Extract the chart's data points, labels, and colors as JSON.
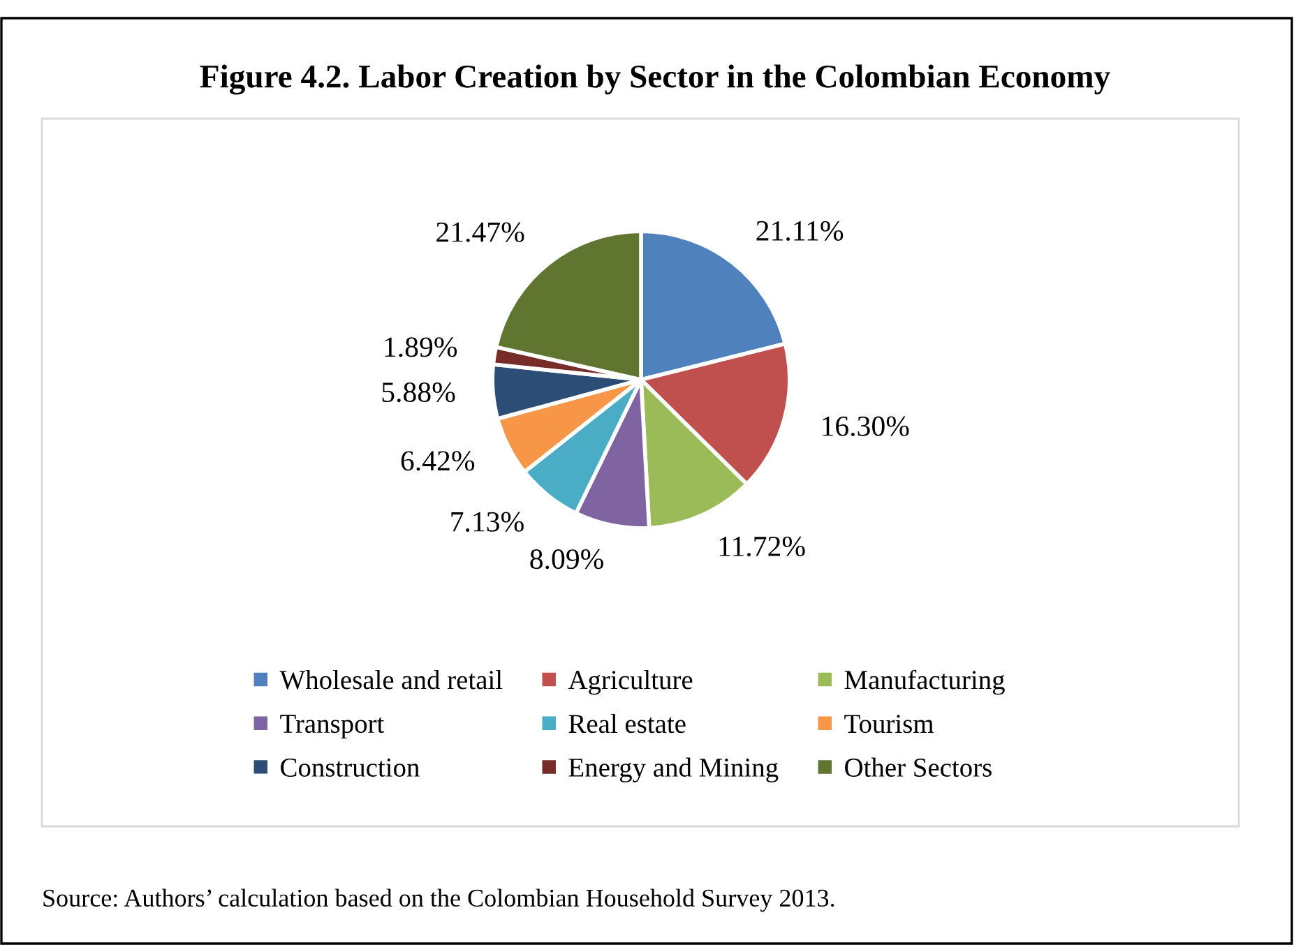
{
  "chart_data": {
    "type": "pie",
    "title": "Figure 4.2. Labor Creation by Sector in the Colombian Economy",
    "categories": [
      "Wholesale and retail",
      "Agriculture",
      "Manufacturing",
      "Transport",
      "Real estate",
      "Tourism",
      "Construction",
      "Energy and Mining",
      "Other Sectors"
    ],
    "values": [
      21.11,
      16.3,
      11.72,
      8.09,
      7.13,
      6.42,
      5.88,
      1.89,
      21.47
    ],
    "value_labels": [
      "21.11%",
      "16.30%",
      "11.72%",
      "8.09%",
      "7.13%",
      "6.42%",
      "5.88%",
      "1.89%",
      "21.47%"
    ],
    "colors": [
      "#4f81bd",
      "#c0504d",
      "#9bbb59",
      "#8064a2",
      "#4bacc6",
      "#f79646",
      "#2c4d75",
      "#772c2a",
      "#5f7530"
    ],
    "legend": "bottom",
    "annotations": [
      "Source: Authors’ calculation based on the Colombian Household Survey 2013."
    ]
  }
}
